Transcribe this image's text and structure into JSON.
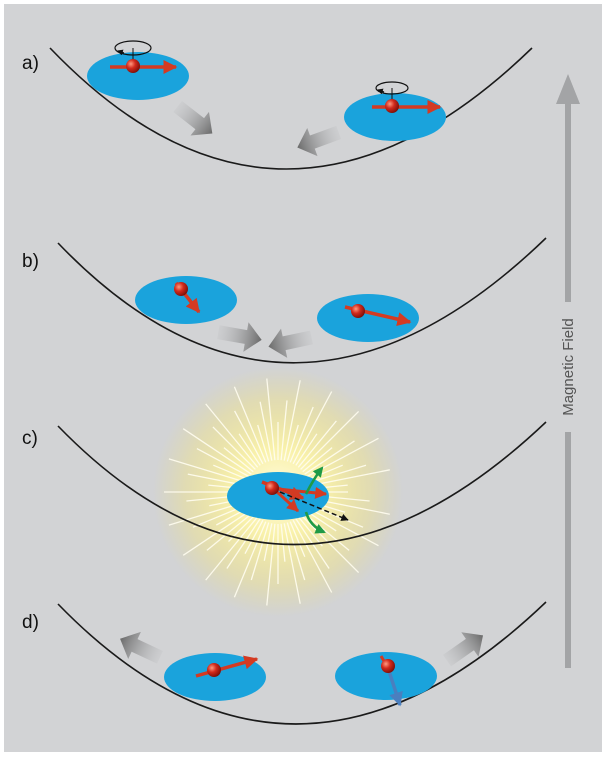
{
  "figure": {
    "background_color": "#d2d3d5",
    "border_color": "#ffffff"
  },
  "panels": [
    {
      "id": "a",
      "label": "a)"
    },
    {
      "id": "b",
      "label": "b)"
    },
    {
      "id": "c",
      "label": "c)"
    },
    {
      "id": "d",
      "label": "d)"
    }
  ],
  "axis": {
    "label": "Magnetic Field",
    "arrow_color": "#a3a4a6"
  },
  "colors": {
    "disk": "#1aa3dc",
    "particle": "#c4221a",
    "spin_arrow": "#d43a22",
    "spin_arrow_down": "#4a7fbf",
    "motion_arrow": "#707070",
    "curve": "#1a1a1a",
    "glow": "#f7ee9a",
    "rotation_arrow": "#1f9a46"
  }
}
